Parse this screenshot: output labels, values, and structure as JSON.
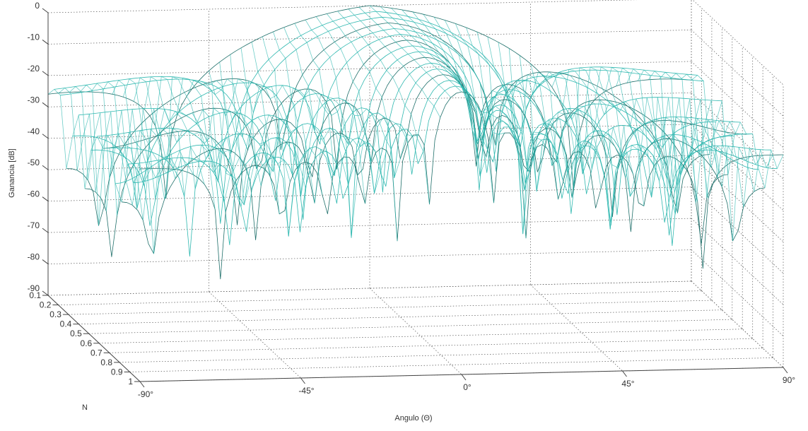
{
  "chart_data": {
    "type": "surface-3d-mesh",
    "title": "",
    "xlabel": "Angulo (Θ)",
    "ylabel": "N",
    "zlabel": "Ganancia [dB]",
    "x_ticks": [
      "-90°",
      "-45°",
      "0°",
      "45°",
      "90°"
    ],
    "x_tick_values": [
      -90,
      -45,
      0,
      45,
      90
    ],
    "y_ticks": [
      "0.1",
      "0.2",
      "0.3",
      "0.4",
      "0.5",
      "0.6",
      "0.7",
      "0.8",
      "0.9",
      "1"
    ],
    "y_tick_values": [
      0.1,
      0.2,
      0.3,
      0.4,
      0.5,
      0.6,
      0.7,
      0.8,
      0.9,
      1.0
    ],
    "z_ticks": [
      "0",
      "-10",
      "-20",
      "-30",
      "-40",
      "-50",
      "-60",
      "-70",
      "-80",
      "-90"
    ],
    "z_tick_values": [
      0,
      -10,
      -20,
      -30,
      -40,
      -50,
      -60,
      -70,
      -80,
      -90
    ],
    "xlim": [
      -90,
      90
    ],
    "ylim": [
      0.1,
      1
    ],
    "zlim": [
      -90,
      0
    ],
    "grid": true,
    "colors": {
      "mesh": "#2fb8b0",
      "mesh_dark": "#1f6f6a",
      "axis": "#444444"
    }
  }
}
